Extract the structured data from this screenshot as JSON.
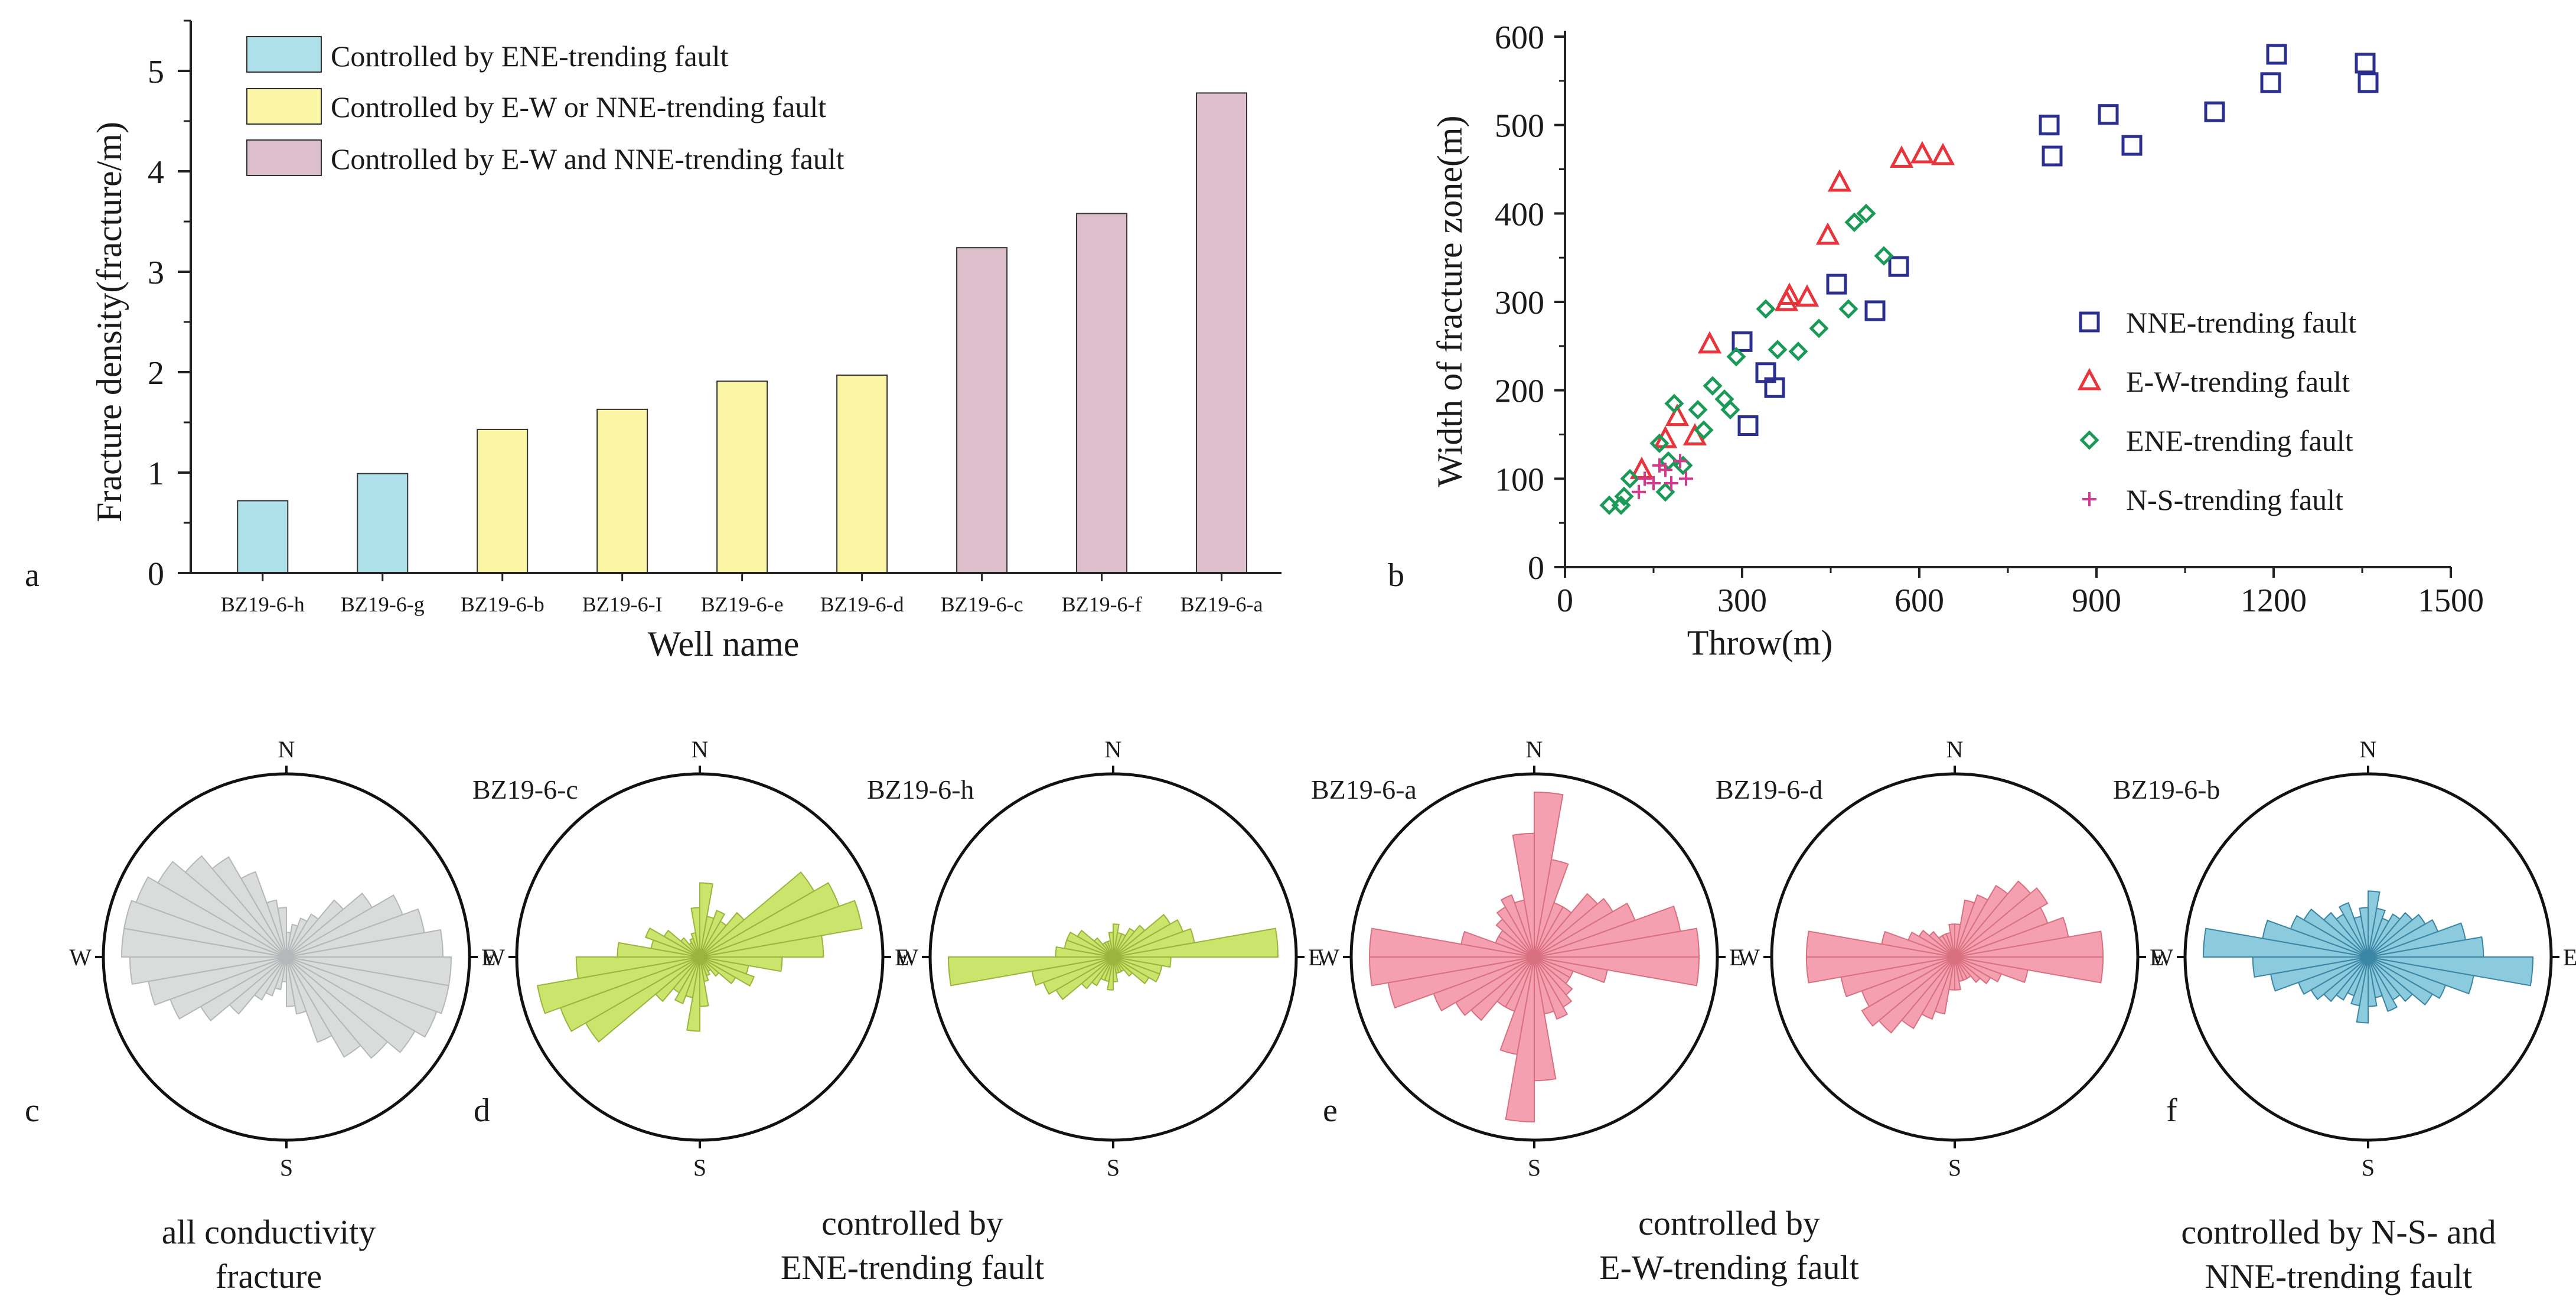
{
  "panel_labels": {
    "a": "a",
    "b": "b",
    "c": "c",
    "d": "d",
    "e": "e",
    "f": "f"
  },
  "captions": {
    "c": [
      "all conductivity",
      "fracture"
    ],
    "d": [
      "controlled by",
      "ENE-trending fault"
    ],
    "e": [
      "controlled by",
      "E-W-trending fault"
    ],
    "f": [
      "controlled by N-S- and",
      "NNE-trending fault"
    ]
  },
  "compass": {
    "n": "N",
    "e": "E",
    "s": "S",
    "w": "W"
  },
  "colors": {
    "ene_bar": "#aee0ea",
    "ew_or_nne_bar": "#fbf6a6",
    "ew_and_nne_bar": "#ddbfcc",
    "nne": "#2b2f8e",
    "ew": "#e8343b",
    "ene": "#1a9a56",
    "ns": "#d2388c",
    "rose_all": "#dadcdc",
    "rose_ene": "#cbe46c",
    "rose_ew": "#f4a0b0",
    "rose_nne": "#8ccade"
  },
  "chart_data": [
    {
      "id": "a",
      "type": "bar",
      "title": "",
      "xlabel": "Well name",
      "ylabel": "Fracture density(fracture/m)",
      "ylim": [
        0,
        5.5
      ],
      "yticks": [
        "0",
        "1",
        "2",
        "3",
        "4",
        "5"
      ],
      "categories": [
        "BZ19-6-h",
        "BZ19-6-g",
        "BZ19-6-b",
        "BZ19-6-I",
        "BZ19-6-e",
        "BZ19-6-d",
        "BZ19-6-c",
        "BZ19-6-f",
        "BZ19-6-a"
      ],
      "values": [
        0.72,
        0.99,
        1.43,
        1.63,
        1.91,
        1.97,
        3.24,
        3.58,
        4.78
      ],
      "groups": [
        0,
        0,
        1,
        1,
        1,
        1,
        2,
        2,
        2
      ],
      "legend": [
        {
          "label": "Controlled by ENE-trending fault",
          "color": "#aee0ea"
        },
        {
          "label": "Controlled by E-W or NNE-trending fault",
          "color": "#fbf6a6"
        },
        {
          "label": "Controlled by E-W and NNE-trending fault",
          "color": "#ddbfcc"
        }
      ]
    },
    {
      "id": "b",
      "type": "scatter",
      "title": "",
      "xlabel": "Throw(m)",
      "ylabel": "Width of fracture zone(m)",
      "xlim": [
        0,
        1500
      ],
      "ylim": [
        0,
        600
      ],
      "xticks": [
        "0",
        "300",
        "600",
        "900",
        "1200",
        "1500"
      ],
      "yticks": [
        "0",
        "100",
        "200",
        "300",
        "400",
        "500",
        "600"
      ],
      "series": [
        {
          "name": "NNE-trending fault",
          "marker": "square",
          "color": "#2b2f8e",
          "x": [
            300,
            310,
            340,
            355,
            460,
            525,
            565,
            820,
            825,
            920,
            960,
            1100,
            1195,
            1205,
            1355,
            1360
          ],
          "y": [
            255,
            160,
            220,
            203,
            320,
            290,
            340,
            500,
            465,
            512,
            477,
            515,
            548,
            580,
            570,
            548
          ]
        },
        {
          "name": "E-W-trending fault",
          "marker": "triangle",
          "color": "#e8343b",
          "x": [
            130,
            170,
            190,
            220,
            245,
            375,
            380,
            410,
            445,
            465,
            570,
            605,
            640
          ],
          "y": [
            110,
            145,
            170,
            148,
            252,
            300,
            307,
            305,
            375,
            435,
            462,
            467,
            465
          ],
          "_note": ""
        },
        {
          "name": "ENE-trending fault",
          "marker": "diamond",
          "color": "#1a9a56",
          "x": [
            75,
            95,
            100,
            110,
            160,
            170,
            175,
            185,
            200,
            225,
            235,
            250,
            270,
            280,
            290,
            340,
            360,
            395,
            430,
            480,
            490,
            510,
            540
          ],
          "y": [
            70,
            70,
            80,
            100,
            140,
            85,
            120,
            185,
            115,
            178,
            155,
            205,
            190,
            178,
            238,
            292,
            246,
            244,
            270,
            292,
            390,
            400,
            352
          ]
        },
        {
          "name": "N-S-trending fault",
          "marker": "plus",
          "color": "#d2388c",
          "x": [
            125,
            135,
            150,
            160,
            170,
            180,
            195,
            205
          ],
          "y": [
            85,
            100,
            95,
            115,
            110,
            95,
            120,
            100
          ]
        }
      ]
    },
    {
      "id": "rose",
      "type": "rose",
      "title": "",
      "bin_degrees": 10,
      "diagrams": [
        {
          "key": "c",
          "name": "",
          "color": "#dadcdc",
          "values": [
            0.15,
            0.2,
            0.25,
            0.3,
            0.45,
            0.6,
            0.75,
            0.85,
            0.95,
            1.0,
            1.0,
            0.97,
            0.9,
            0.8,
            0.7,
            0.55,
            0.35,
            0.3
          ]
        },
        {
          "key": "d1",
          "name": "BZ19-6-c",
          "color": "#cbe46c",
          "values": [
            0.45,
            0.25,
            0.3,
            0.25,
            0.35,
            0.8,
            0.9,
            1.0,
            0.75,
            0.5,
            0.3,
            0.35,
            0.25,
            0.15,
            0.1,
            0.12,
            0.15,
            0.3
          ]
        },
        {
          "key": "d2",
          "name": "BZ19-6-h",
          "color": "#cbe46c",
          "values": [
            0.2,
            0.15,
            0.15,
            0.2,
            0.25,
            0.4,
            0.45,
            0.5,
            1.0,
            0.35,
            0.3,
            0.3,
            0.25,
            0.15,
            0.1,
            0.1,
            0.1,
            0.15
          ]
        },
        {
          "key": "e1",
          "name": "BZ19-6-a",
          "color": "#f4a0b0",
          "values": [
            1.0,
            0.6,
            0.35,
            0.35,
            0.5,
            0.55,
            0.65,
            0.9,
            1.0,
            1.0,
            0.45,
            0.25,
            0.25,
            0.3,
            0.35,
            0.4,
            0.35,
            0.75
          ]
        },
        {
          "key": "e2",
          "name": "BZ19-6-d",
          "color": "#f4a0b0",
          "values": [
            0.2,
            0.35,
            0.4,
            0.5,
            0.6,
            0.65,
            0.6,
            0.7,
            0.9,
            0.9,
            0.45,
            0.3,
            0.25,
            0.2,
            0.15,
            0.15,
            0.15,
            0.2
          ]
        },
        {
          "key": "f",
          "name": "BZ19-6-b",
          "color": "#8ccade",
          "values": [
            0.4,
            0.3,
            0.25,
            0.3,
            0.35,
            0.4,
            0.45,
            0.6,
            0.7,
            1.0,
            0.65,
            0.5,
            0.45,
            0.35,
            0.3,
            0.35,
            0.25,
            0.3
          ]
        }
      ]
    }
  ]
}
